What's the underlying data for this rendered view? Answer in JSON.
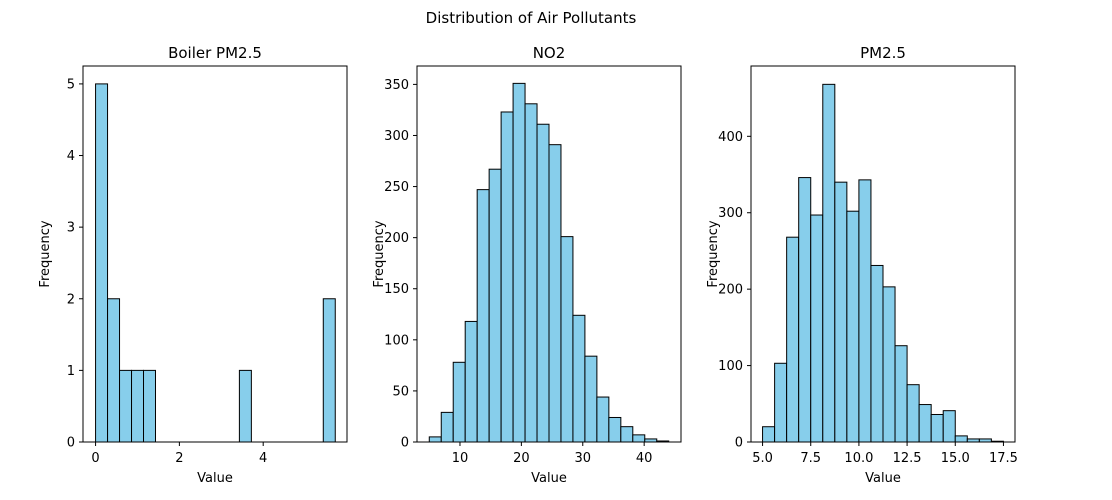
{
  "figure": {
    "title": "Distribution of Air Pollutants"
  },
  "chart_data": [
    {
      "type": "bar",
      "title": "Boiler PM2.5",
      "xlabel": "Value",
      "ylabel": "Frequency",
      "bar_color": "#87ceeb",
      "bin_start": 0.0,
      "bin_width": 0.286,
      "values": [
        5,
        2,
        1,
        1,
        1,
        0,
        0,
        0,
        0,
        0,
        0,
        0,
        1,
        0,
        0,
        0,
        0,
        0,
        0,
        2
      ],
      "xlim": [
        -0.3,
        6.0
      ],
      "ylim": [
        0,
        5.25
      ],
      "xticks": [
        0,
        2,
        4
      ],
      "yticks": [
        0,
        1,
        2,
        3,
        4,
        5
      ]
    },
    {
      "type": "bar",
      "title": "NO2",
      "xlabel": "Value",
      "ylabel": "Frequency",
      "bar_color": "#87ceeb",
      "bin_start": 5.0,
      "bin_width": 1.95,
      "values": [
        5,
        29,
        78,
        118,
        247,
        267,
        323,
        351,
        331,
        311,
        291,
        201,
        124,
        84,
        44,
        24,
        15,
        7,
        3,
        1
      ],
      "xlim": [
        3.0,
        46.0
      ],
      "ylim": [
        0,
        368
      ],
      "xticks": [
        10,
        20,
        30,
        40
      ],
      "yticks": [
        0,
        50,
        100,
        150,
        200,
        250,
        300,
        350
      ]
    },
    {
      "type": "bar",
      "title": "PM2.5",
      "xlabel": "Value",
      "ylabel": "Frequency",
      "bar_color": "#87ceeb",
      "bin_start": 5.0,
      "bin_width": 0.625,
      "values": [
        20,
        103,
        268,
        346,
        297,
        468,
        340,
        302,
        343,
        231,
        203,
        126,
        75,
        49,
        36,
        41,
        8,
        4,
        4,
        1
      ],
      "xlim": [
        4.4,
        18.1
      ],
      "ylim": [
        0,
        492
      ],
      "xticks": [
        5.0,
        7.5,
        10.0,
        12.5,
        15.0,
        17.5
      ],
      "yticks": [
        0,
        100,
        200,
        300,
        400
      ]
    }
  ]
}
